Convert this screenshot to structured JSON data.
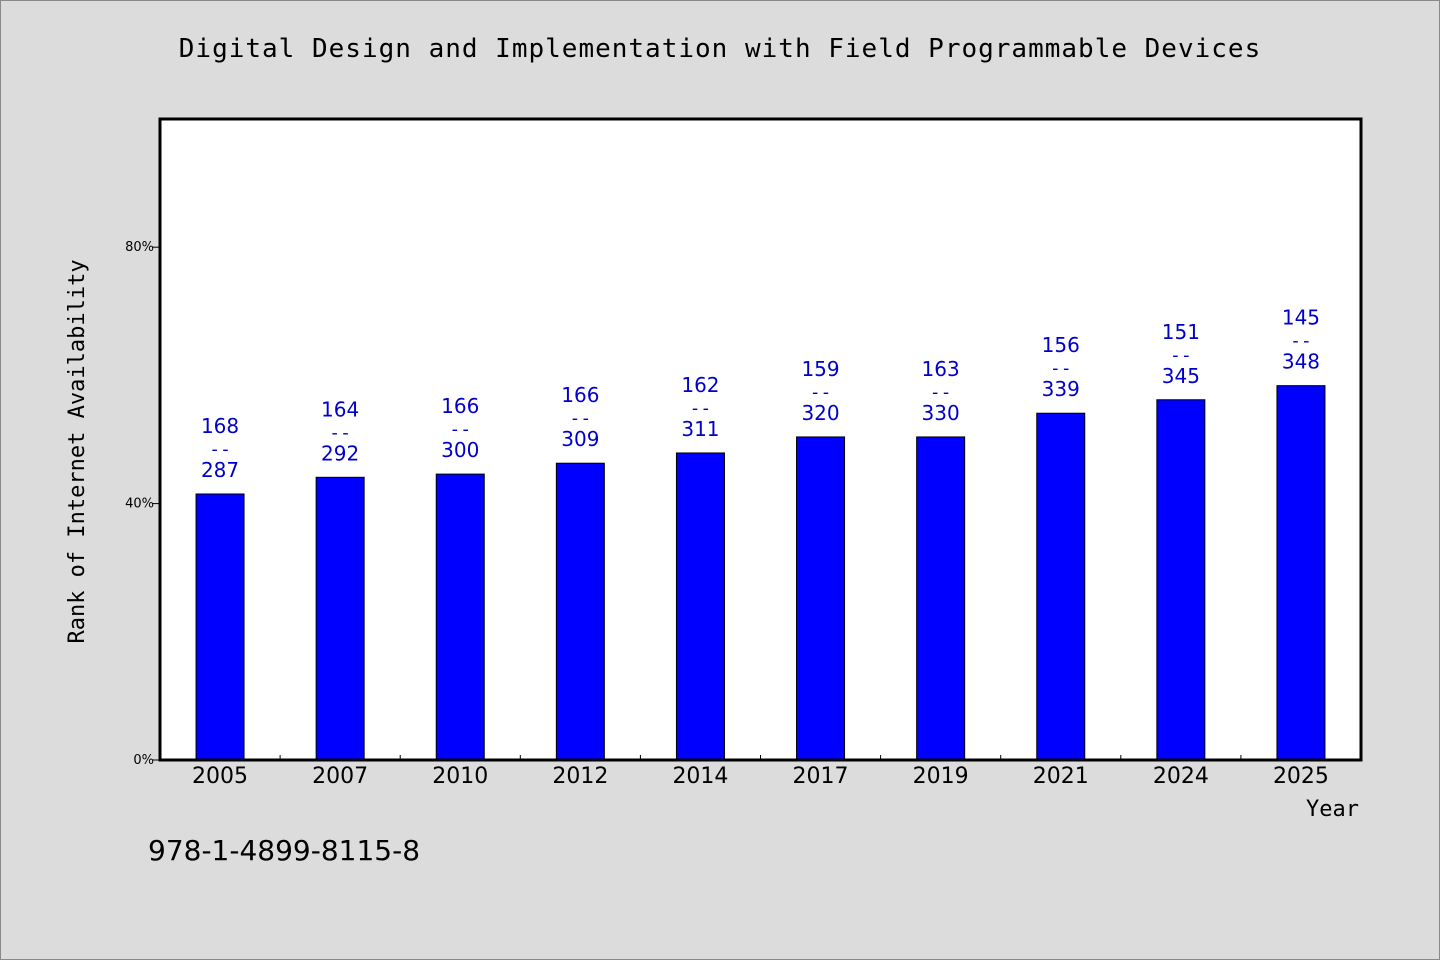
{
  "chart_data": {
    "type": "bar",
    "title": "Digital Design and Implementation with Field Programmable Devices",
    "xlabel": "Year",
    "ylabel": "Rank of Internet Availability",
    "ylim": [
      0,
      100
    ],
    "yticks": [
      {
        "value": 0,
        "label": "0%"
      },
      {
        "value": 40,
        "label": "40%"
      },
      {
        "value": 80,
        "label": "80%"
      }
    ],
    "categories": [
      "2005",
      "2007",
      "2010",
      "2012",
      "2014",
      "2017",
      "2019",
      "2021",
      "2024",
      "2025"
    ],
    "values": [
      41.5,
      44.1,
      44.6,
      46.3,
      47.9,
      50.4,
      50.4,
      54.1,
      56.2,
      58.4
    ],
    "data_labels": [
      {
        "top": "168",
        "sep": "--",
        "bottom": "287"
      },
      {
        "top": "164",
        "sep": "--",
        "bottom": "292"
      },
      {
        "top": "166",
        "sep": "--",
        "bottom": "300"
      },
      {
        "top": "166",
        "sep": "--",
        "bottom": "309"
      },
      {
        "top": "162",
        "sep": "--",
        "bottom": "311"
      },
      {
        "top": "159",
        "sep": "--",
        "bottom": "320"
      },
      {
        "top": "163",
        "sep": "--",
        "bottom": "330"
      },
      {
        "top": "156",
        "sep": "--",
        "bottom": "339"
      },
      {
        "top": "151",
        "sep": "--",
        "bottom": "345"
      },
      {
        "top": "145",
        "sep": "--",
        "bottom": "348"
      }
    ],
    "bar_color": "#0000ff",
    "label_color": "#0000cc",
    "grid": false
  },
  "footer": {
    "isbn": "978-1-4899-8115-8"
  }
}
